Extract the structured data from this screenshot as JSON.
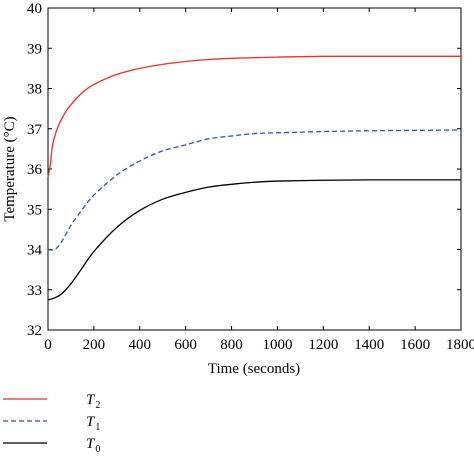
{
  "chart_data": {
    "type": "line",
    "xlabel": "Time (seconds)",
    "ylabel": "Temperature (°C)",
    "xlim": [
      0,
      1800
    ],
    "ylim": [
      32,
      40
    ],
    "xticks": [
      0,
      200,
      400,
      600,
      800,
      1000,
      1200,
      1400,
      1600,
      1800
    ],
    "yticks": [
      32,
      33,
      34,
      35,
      36,
      37,
      38,
      39,
      40
    ],
    "grid": false,
    "legend_position": "below",
    "series": [
      {
        "name": "T2",
        "name_main": "T",
        "name_sub": "2",
        "color": "#e8302c",
        "dash": "solid",
        "points": [
          [
            0,
            35.8
          ],
          [
            10,
            36.1
          ],
          [
            20,
            36.6
          ],
          [
            40,
            37.0
          ],
          [
            60,
            37.25
          ],
          [
            80,
            37.45
          ],
          [
            100,
            37.6
          ],
          [
            150,
            37.9
          ],
          [
            200,
            38.1
          ],
          [
            300,
            38.35
          ],
          [
            400,
            38.5
          ],
          [
            500,
            38.6
          ],
          [
            600,
            38.67
          ],
          [
            700,
            38.72
          ],
          [
            800,
            38.75
          ],
          [
            1000,
            38.78
          ],
          [
            1200,
            38.8
          ],
          [
            1400,
            38.8
          ],
          [
            1600,
            38.8
          ],
          [
            1800,
            38.8
          ]
        ]
      },
      {
        "name": "T1",
        "name_main": "T",
        "name_sub": "1",
        "color": "#2b55b4",
        "dash": "dashed",
        "points": [
          [
            0,
            34.0
          ],
          [
            30,
            34.0
          ],
          [
            60,
            34.2
          ],
          [
            100,
            34.6
          ],
          [
            150,
            35.0
          ],
          [
            200,
            35.35
          ],
          [
            300,
            35.85
          ],
          [
            400,
            36.2
          ],
          [
            500,
            36.45
          ],
          [
            600,
            36.6
          ],
          [
            700,
            36.75
          ],
          [
            800,
            36.82
          ],
          [
            900,
            36.88
          ],
          [
            1000,
            36.9
          ],
          [
            1200,
            36.93
          ],
          [
            1400,
            36.95
          ],
          [
            1600,
            36.96
          ],
          [
            1800,
            36.97
          ]
        ]
      },
      {
        "name": "T0",
        "name_main": "T",
        "name_sub": "0",
        "color": "#000000",
        "dash": "solid",
        "points": [
          [
            0,
            32.75
          ],
          [
            30,
            32.8
          ],
          [
            60,
            32.9
          ],
          [
            100,
            33.15
          ],
          [
            150,
            33.55
          ],
          [
            200,
            33.95
          ],
          [
            300,
            34.55
          ],
          [
            400,
            34.97
          ],
          [
            500,
            35.25
          ],
          [
            600,
            35.42
          ],
          [
            700,
            35.55
          ],
          [
            800,
            35.62
          ],
          [
            900,
            35.67
          ],
          [
            1000,
            35.7
          ],
          [
            1200,
            35.72
          ],
          [
            1400,
            35.73
          ],
          [
            1600,
            35.73
          ],
          [
            1800,
            35.73
          ]
        ]
      }
    ]
  }
}
